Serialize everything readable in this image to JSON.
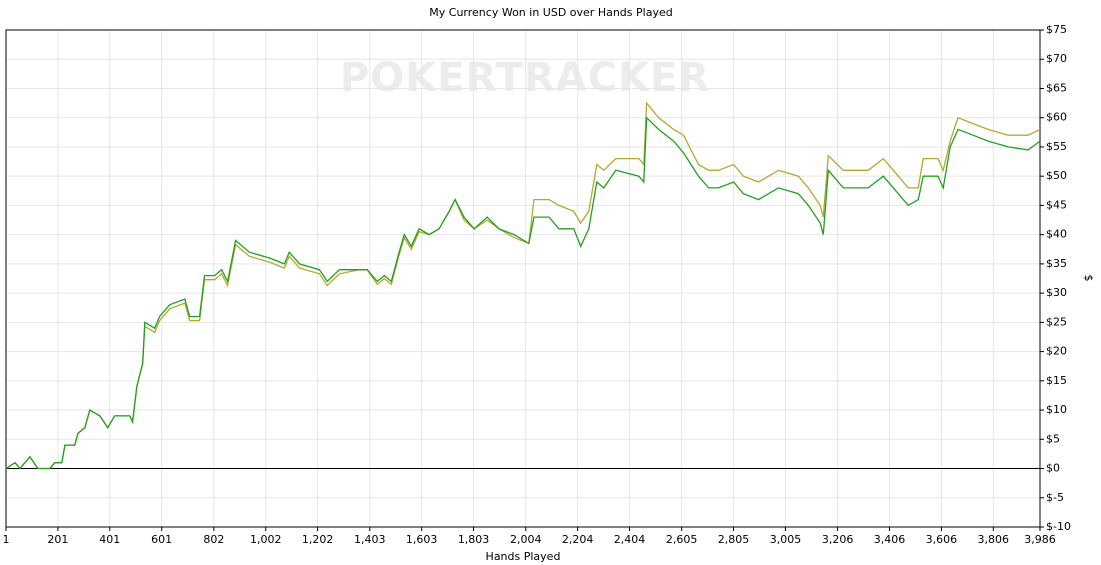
{
  "chart_data": {
    "type": "line",
    "title": "My Currency Won in USD over Hands Played",
    "watermark": "POKERTRACKER",
    "x_label": "Hands Played",
    "y_label": "$",
    "xlim": [
      1,
      3986
    ],
    "ylim": [
      -10,
      75
    ],
    "grid": true,
    "xticks": [
      1,
      201,
      401,
      601,
      802,
      {
        "value": 1002,
        "label": "1,002"
      },
      {
        "value": 1202,
        "label": "1,202"
      },
      {
        "value": 1403,
        "label": "1,403"
      },
      {
        "value": 1603,
        "label": "1,603"
      },
      {
        "value": 1803,
        "label": "1,803"
      },
      {
        "value": 2004,
        "label": "2,004"
      },
      {
        "value": 2204,
        "label": "2,204"
      },
      {
        "value": 2404,
        "label": "2,404"
      },
      {
        "value": 2605,
        "label": "2,605"
      },
      {
        "value": 2805,
        "label": "2,805"
      },
      {
        "value": 3005,
        "label": "3,005"
      },
      {
        "value": 3206,
        "label": "3,206"
      },
      {
        "value": 3406,
        "label": "3,406"
      },
      {
        "value": 3606,
        "label": "3,606"
      },
      {
        "value": 3806,
        "label": "3,806"
      },
      {
        "value": 3986,
        "label": "3,986"
      }
    ],
    "yticks": [
      {
        "value": 75,
        "label": "$75"
      },
      {
        "value": 70,
        "label": "$70"
      },
      {
        "value": 65,
        "label": "$65"
      },
      {
        "value": 60,
        "label": "$60"
      },
      {
        "value": 55,
        "label": "$55"
      },
      {
        "value": 50,
        "label": "$50"
      },
      {
        "value": 45,
        "label": "$45"
      },
      {
        "value": 40,
        "label": "$40"
      },
      {
        "value": 35,
        "label": "$35"
      },
      {
        "value": 30,
        "label": "$30"
      },
      {
        "value": 25,
        "label": "$25"
      },
      {
        "value": 20,
        "label": "$20"
      },
      {
        "value": 15,
        "label": "$15"
      },
      {
        "value": 10,
        "label": "$10"
      },
      {
        "value": 5,
        "label": "$5"
      },
      {
        "value": 0,
        "label": "$0"
      },
      {
        "value": -5,
        "label": "$-5"
      },
      {
        "value": -10,
        "label": "$-10"
      }
    ],
    "x": [
      1,
      36,
      55,
      93,
      124,
      170,
      189,
      216,
      228,
      266,
      278,
      305,
      324,
      363,
      393,
      420,
      478,
      489,
      505,
      528,
      536,
      574,
      593,
      632,
      690,
      709,
      747,
      766,
      805,
      832,
      855,
      886,
      939,
      1016,
      1074,
      1093,
      1132,
      1209,
      1239,
      1286,
      1363,
      1393,
      1432,
      1459,
      1486,
      1516,
      1536,
      1563,
      1593,
      1632,
      1670,
      1709,
      1732,
      1766,
      1805,
      1855,
      1901,
      1959,
      2016,
      2036,
      2094,
      2132,
      2189,
      2216,
      2247,
      2278,
      2305,
      2351,
      2440,
      2459,
      2470,
      2516,
      2574,
      2612,
      2670,
      2709,
      2747,
      2805,
      2843,
      2901,
      2978,
      3055,
      3093,
      3139,
      3151,
      3170,
      3228,
      3286,
      3324,
      3382,
      3440,
      3478,
      3517,
      3536,
      3593,
      3613,
      3640,
      3670,
      3728,
      3786,
      3863,
      3940,
      3986
    ],
    "series": [
      {
        "color": "#b5a830",
        "values": [
          0,
          1,
          0,
          2,
          0,
          0,
          1,
          1,
          4,
          4,
          6,
          7,
          10,
          9,
          7,
          9,
          9,
          8,
          14,
          18,
          24.3,
          23.3,
          25.3,
          27.3,
          28.3,
          25.3,
          25.3,
          32.3,
          32.3,
          33.3,
          31.3,
          38.3,
          36.3,
          35.3,
          34.3,
          36.3,
          34.3,
          33.3,
          31.3,
          33.3,
          34,
          34,
          31.5,
          32.5,
          31.5,
          36.5,
          39.5,
          37.5,
          40.5,
          40,
          41,
          44,
          46,
          42.5,
          41,
          42.5,
          41,
          39.5,
          38.5,
          46,
          46,
          45,
          44,
          42,
          44,
          52,
          51,
          53,
          53,
          52,
          62.5,
          60,
          58,
          57,
          52,
          51,
          51,
          52,
          50,
          49,
          51,
          50,
          48,
          45,
          43,
          53.5,
          51,
          51,
          51,
          53,
          50,
          48,
          48,
          53,
          53,
          51,
          56,
          60,
          59,
          58,
          57,
          57,
          58
        ]
      },
      {
        "color": "#22a022",
        "values": [
          0,
          1,
          0,
          2,
          0,
          0,
          1,
          1,
          4,
          4,
          6,
          7,
          10,
          9,
          7,
          9,
          9,
          8,
          14,
          18,
          25,
          24,
          26,
          28,
          29,
          26,
          26,
          33,
          33,
          34,
          32,
          39,
          37,
          36,
          35,
          37,
          35,
          34,
          32,
          34,
          34,
          34,
          32,
          33,
          32,
          37,
          40,
          38,
          41,
          40,
          41,
          44,
          46,
          43,
          41,
          43,
          41,
          40,
          38.5,
          43,
          43,
          41,
          41,
          38,
          41,
          49,
          48,
          51,
          50,
          49,
          60,
          58,
          56,
          54,
          50,
          48,
          48,
          49,
          47,
          46,
          48,
          47,
          45,
          42,
          40,
          51,
          48,
          48,
          48,
          50,
          47,
          45,
          46,
          50,
          50,
          48,
          55,
          58,
          57,
          56,
          55,
          54.5,
          56
        ]
      }
    ]
  }
}
